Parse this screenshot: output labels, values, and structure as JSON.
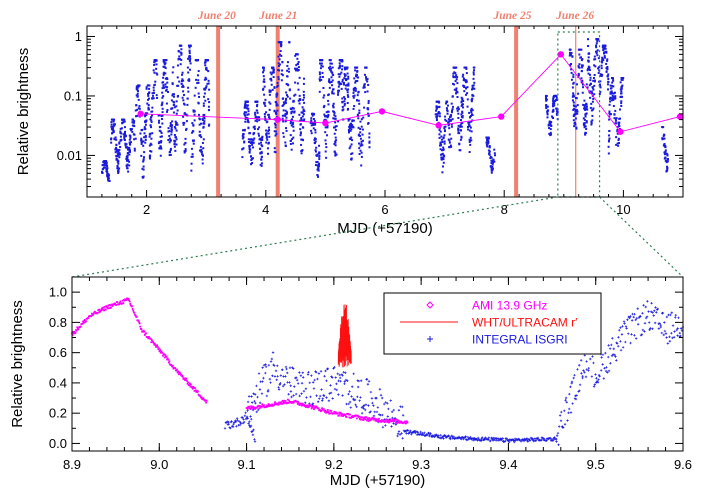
{
  "colors": {
    "isgri": "#1a1adf",
    "ami": "#ff00ff",
    "ultracam": "#ff1010",
    "annotation": "#f08070",
    "zoom_box": "#2e7d4f"
  },
  "chart_data": [
    {
      "id": "top",
      "type": "scatter",
      "xlabel": "MJD (+57190)",
      "ylabel": "Relative brightness",
      "xlim": [
        1.0,
        11.0
      ],
      "ylim": [
        0.002,
        1.5
      ],
      "log_y": true,
      "x_ticks": [
        2,
        4,
        6,
        8,
        10
      ],
      "x_tick_labels": [
        "2",
        "4",
        "6",
        "8",
        "10"
      ],
      "y_ticks": [
        0.01,
        0.1,
        1
      ],
      "y_tick_labels": [
        "0.01",
        "0.1",
        "1"
      ],
      "date_markers": [
        {
          "label": "June 20",
          "x": 3.2,
          "label_x": 3.18
        },
        {
          "label": "June 21",
          "x": 4.2,
          "label_x": 4.21
        },
        {
          "label": "June 25",
          "x": 8.2,
          "label_x": 8.14
        },
        {
          "label": "June 26",
          "x": 9.2,
          "label_x": 9.19
        }
      ],
      "zoom_window": [
        8.9,
        9.6
      ],
      "series": [
        {
          "key": "isgri",
          "kind": "points",
          "segments": [
            {
              "x0": 1.25,
              "x1": 1.38,
              "lo": 0.003,
              "hi": 0.008
            },
            {
              "x0": 1.4,
              "x1": 1.8,
              "lo": 0.005,
              "hi": 0.04
            },
            {
              "x0": 1.8,
              "x1": 2.05,
              "lo": 0.004,
              "hi": 0.15
            },
            {
              "x0": 2.05,
              "x1": 2.45,
              "lo": 0.008,
              "hi": 0.4
            },
            {
              "x0": 2.45,
              "x1": 2.75,
              "lo": 0.01,
              "hi": 0.7
            },
            {
              "x0": 2.75,
              "x1": 3.05,
              "lo": 0.005,
              "hi": 0.4
            },
            {
              "x0": 3.6,
              "x1": 3.95,
              "lo": 0.006,
              "hi": 0.08
            },
            {
              "x0": 3.95,
              "x1": 4.15,
              "lo": 0.008,
              "hi": 0.3
            },
            {
              "x0": 4.15,
              "x1": 4.4,
              "lo": 0.01,
              "hi": 0.8
            },
            {
              "x0": 4.4,
              "x1": 4.65,
              "lo": 0.01,
              "hi": 0.5
            },
            {
              "x0": 4.75,
              "x1": 4.9,
              "lo": 0.004,
              "hi": 0.05
            },
            {
              "x0": 4.9,
              "x1": 5.3,
              "lo": 0.008,
              "hi": 0.4
            },
            {
              "x0": 5.3,
              "x1": 5.75,
              "lo": 0.006,
              "hi": 0.3
            },
            {
              "x0": 6.85,
              "x1": 7.05,
              "lo": 0.005,
              "hi": 0.08
            },
            {
              "x0": 7.05,
              "x1": 7.5,
              "lo": 0.01,
              "hi": 0.3
            },
            {
              "x0": 7.7,
              "x1": 7.85,
              "lo": 0.005,
              "hi": 0.02
            },
            {
              "x0": 8.7,
              "x1": 8.9,
              "lo": 0.02,
              "hi": 0.1
            },
            {
              "x0": 9.1,
              "x1": 9.4,
              "lo": 0.02,
              "hi": 0.6
            },
            {
              "x0": 9.4,
              "x1": 9.6,
              "lo": 0.03,
              "hi": 0.9
            },
            {
              "x0": 9.6,
              "x1": 9.75,
              "lo": 0.1,
              "hi": 0.7
            },
            {
              "x0": 9.75,
              "x1": 10.0,
              "lo": 0.008,
              "hi": 0.2
            },
            {
              "x0": 10.65,
              "x1": 10.75,
              "lo": 0.005,
              "hi": 0.03
            }
          ]
        },
        {
          "key": "ami",
          "kind": "line-markers",
          "x": [
            1.9,
            4.2,
            5.0,
            5.95,
            6.9,
            7.95,
            8.95,
            9.95,
            10.95
          ],
          "y": [
            0.05,
            0.04,
            0.035,
            0.055,
            0.032,
            0.045,
            0.5,
            0.025,
            0.045
          ]
        }
      ]
    },
    {
      "id": "bottom",
      "type": "scatter",
      "xlabel": "MJD (+57190)",
      "ylabel": "Relative brightness",
      "xlim": [
        8.9,
        9.6
      ],
      "ylim": [
        -0.05,
        1.1
      ],
      "x_ticks": [
        8.9,
        9.0,
        9.1,
        9.2,
        9.3,
        9.4,
        9.5,
        9.6
      ],
      "x_tick_labels": [
        "8.9",
        "9.0",
        "9.1",
        "9.2",
        "9.3",
        "9.4",
        "9.5",
        "9.6"
      ],
      "y_ticks": [
        0.0,
        0.2,
        0.4,
        0.6,
        0.8,
        1.0
      ],
      "y_tick_labels": [
        "0.0",
        "0.2",
        "0.4",
        "0.6",
        "0.8",
        "1.0"
      ],
      "legend": [
        {
          "key": "ami",
          "label": "AMI 13.9 GHz",
          "marker": "diamond"
        },
        {
          "key": "ultracam",
          "label": "WHT/ULTRACAM r′",
          "marker": "line"
        },
        {
          "key": "isgri",
          "label": "INTEGRAL ISGRI",
          "marker": "plus"
        }
      ],
      "legend_position": "top-right",
      "series": [
        {
          "key": "ami",
          "kind": "curve-points",
          "segments": [
            {
              "x": [
                8.9,
                8.92,
                8.94,
                8.965,
                8.98,
                9.0,
                9.02,
                9.055
              ],
              "y": [
                0.72,
                0.84,
                0.9,
                0.95,
                0.75,
                0.62,
                0.48,
                0.27
              ]
            },
            {
              "x": [
                9.1,
                9.13,
                9.15,
                9.17,
                9.2,
                9.24,
                9.285
              ],
              "y": [
                0.23,
                0.26,
                0.28,
                0.25,
                0.2,
                0.16,
                0.14
              ]
            }
          ]
        },
        {
          "key": "ultracam",
          "kind": "burst",
          "x0": 9.205,
          "x1": 9.22,
          "lo": 0.45,
          "hi": 1.0
        },
        {
          "key": "isgri",
          "kind": "plus-points",
          "segments": [
            {
              "x": [
                9.075,
                9.09,
                9.1,
                9.11
              ],
              "y": [
                0.12,
                0.14,
                0.18,
                0.03
              ],
              "spread": 0.03
            },
            {
              "x": [
                9.1,
                9.13,
                9.16,
                9.2,
                9.24,
                9.28
              ],
              "y": [
                0.2,
                0.5,
                0.35,
                0.4,
                0.3,
                0.12
              ],
              "spread": 0.12
            },
            {
              "x": [
                9.28,
                9.33,
                9.4,
                9.455
              ],
              "y": [
                0.08,
                0.04,
                0.02,
                0.03
              ],
              "spread": 0.012
            },
            {
              "x": [
                9.455,
                9.47,
                9.49,
                9.5,
                9.53,
                9.56,
                9.58,
                9.6
              ],
              "y": [
                0.05,
                0.28,
                0.55,
                0.45,
                0.7,
                0.85,
                0.75,
                0.8
              ],
              "spread": 0.1
            }
          ]
        }
      ]
    }
  ]
}
